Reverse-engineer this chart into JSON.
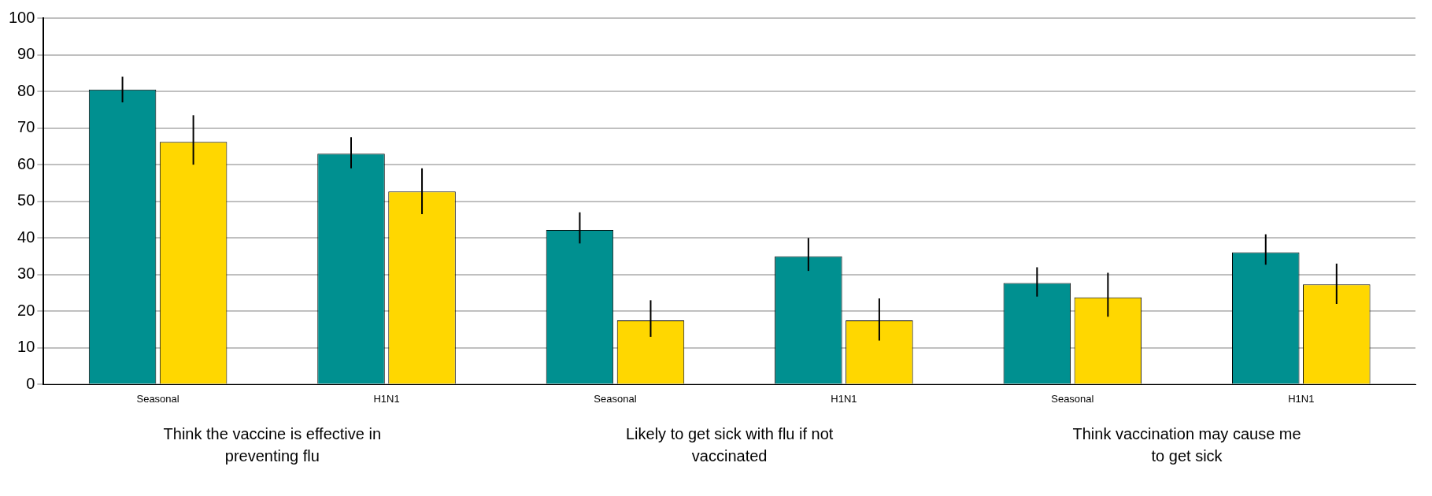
{
  "chart_data": {
    "type": "bar",
    "categories": [
      "Seasonal",
      "H1N1",
      "Seasonal",
      "H1N1",
      "Seasonal",
      "H1N1"
    ],
    "series": [
      {
        "color": "#009090",
        "values": [
          80.5,
          63,
          42.2,
          35,
          27.7,
          36.1
        ],
        "errors": [
          [
            77,
            84
          ],
          [
            59,
            67.5
          ],
          [
            38.5,
            47
          ],
          [
            31,
            40
          ],
          [
            24,
            32
          ],
          [
            32.7,
            41
          ]
        ]
      },
      {
        "color": "#ffd700",
        "values": [
          66.2,
          52.7,
          17.5,
          17.5,
          23.8,
          27.3
        ],
        "errors": [
          [
            60,
            73.5
          ],
          [
            46.5,
            59
          ],
          [
            13,
            23
          ],
          [
            12,
            23.5
          ],
          [
            18.5,
            30.5
          ],
          [
            22,
            33
          ]
        ]
      }
    ],
    "ylim": [
      0,
      100
    ],
    "yticks": [
      0,
      10,
      20,
      30,
      40,
      50,
      60,
      70,
      80,
      90,
      100
    ],
    "grid": "y",
    "legend": false,
    "annotations": [
      "Think the vaccine is effective in preventing flu",
      "Likely to get sick with flu if not vaccinated",
      "Think vaccination may cause me to get sick"
    ]
  }
}
